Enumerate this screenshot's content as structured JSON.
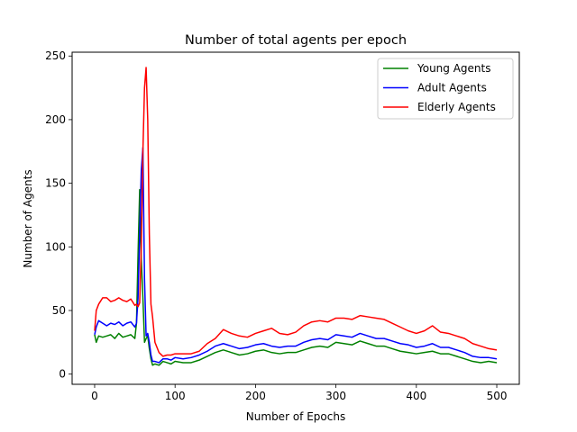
{
  "chart_data": {
    "type": "line",
    "title": "Number of total agents per epoch",
    "xlabel": "Number of Epochs",
    "ylabel": "Number of Agents",
    "xlim": [
      -28,
      528
    ],
    "ylim": [
      -8,
      253
    ],
    "xticks": [
      0,
      100,
      200,
      300,
      400,
      500
    ],
    "yticks": [
      0,
      50,
      100,
      150,
      200,
      250
    ],
    "grid": false,
    "legend": "top-right",
    "series": [
      {
        "name": "Young Agents",
        "color": "#008000",
        "x": [
          0,
          2,
          5,
          10,
          15,
          20,
          25,
          30,
          35,
          40,
          45,
          50,
          52,
          54,
          56,
          58,
          60,
          62,
          64,
          66,
          68,
          70,
          72,
          75,
          80,
          85,
          90,
          95,
          100,
          110,
          120,
          130,
          140,
          150,
          160,
          170,
          180,
          190,
          200,
          210,
          220,
          230,
          240,
          250,
          260,
          270,
          280,
          290,
          300,
          310,
          320,
          330,
          340,
          350,
          360,
          370,
          380,
          390,
          400,
          410,
          420,
          430,
          440,
          450,
          460,
          470,
          480,
          490,
          500
        ],
        "values": [
          31,
          25,
          30,
          29,
          30,
          31,
          28,
          32,
          29,
          30,
          31,
          28,
          40,
          95,
          145,
          90,
          60,
          25,
          28,
          30,
          20,
          12,
          7,
          8,
          7,
          10,
          9,
          8,
          10,
          9,
          9,
          11,
          14,
          17,
          19,
          17,
          15,
          16,
          18,
          19,
          17,
          16,
          17,
          17,
          19,
          21,
          22,
          21,
          25,
          24,
          23,
          26,
          24,
          22,
          22,
          20,
          18,
          17,
          16,
          17,
          18,
          16,
          16,
          14,
          12,
          10,
          9,
          10,
          9
        ]
      },
      {
        "name": "Adult Agents",
        "color": "#0000ff",
        "x": [
          0,
          2,
          5,
          10,
          15,
          20,
          25,
          30,
          35,
          40,
          45,
          50,
          52,
          54,
          56,
          58,
          60,
          62,
          64,
          66,
          68,
          70,
          72,
          75,
          80,
          85,
          90,
          95,
          100,
          110,
          120,
          130,
          140,
          150,
          160,
          170,
          180,
          190,
          200,
          210,
          220,
          230,
          240,
          250,
          260,
          270,
          280,
          290,
          300,
          310,
          320,
          330,
          340,
          350,
          360,
          370,
          380,
          390,
          400,
          410,
          420,
          430,
          440,
          450,
          460,
          470,
          480,
          490,
          500
        ],
        "values": [
          31,
          37,
          42,
          40,
          38,
          40,
          39,
          41,
          38,
          40,
          41,
          37,
          40,
          60,
          110,
          160,
          178,
          75,
          30,
          32,
          25,
          15,
          10,
          10,
          9,
          12,
          12,
          11,
          13,
          12,
          13,
          15,
          18,
          22,
          24,
          22,
          20,
          21,
          23,
          24,
          22,
          21,
          22,
          22,
          25,
          27,
          28,
          27,
          31,
          30,
          29,
          32,
          30,
          28,
          28,
          26,
          24,
          23,
          21,
          22,
          24,
          21,
          21,
          19,
          17,
          14,
          13,
          13,
          12
        ]
      },
      {
        "name": "Elderly Agents",
        "color": "#ff0000",
        "x": [
          0,
          2,
          5,
          10,
          15,
          20,
          25,
          30,
          35,
          40,
          45,
          50,
          52,
          54,
          56,
          58,
          60,
          62,
          64,
          66,
          68,
          70,
          72,
          75,
          80,
          85,
          90,
          95,
          100,
          110,
          120,
          130,
          140,
          150,
          160,
          170,
          180,
          190,
          200,
          210,
          220,
          230,
          240,
          250,
          260,
          270,
          280,
          290,
          300,
          310,
          320,
          330,
          340,
          350,
          360,
          370,
          380,
          390,
          400,
          410,
          420,
          430,
          440,
          450,
          460,
          470,
          480,
          490,
          500
        ],
        "values": [
          34,
          50,
          55,
          60,
          60,
          57,
          58,
          60,
          58,
          57,
          59,
          54,
          55,
          53,
          56,
          100,
          175,
          225,
          241,
          200,
          110,
          55,
          45,
          25,
          17,
          14,
          15,
          15,
          16,
          16,
          16,
          18,
          24,
          28,
          35,
          32,
          30,
          29,
          32,
          34,
          36,
          32,
          31,
          33,
          38,
          41,
          42,
          41,
          44,
          44,
          43,
          46,
          45,
          44,
          43,
          40,
          37,
          34,
          32,
          34,
          38,
          33,
          32,
          30,
          28,
          24,
          22,
          20,
          19
        ]
      }
    ]
  }
}
